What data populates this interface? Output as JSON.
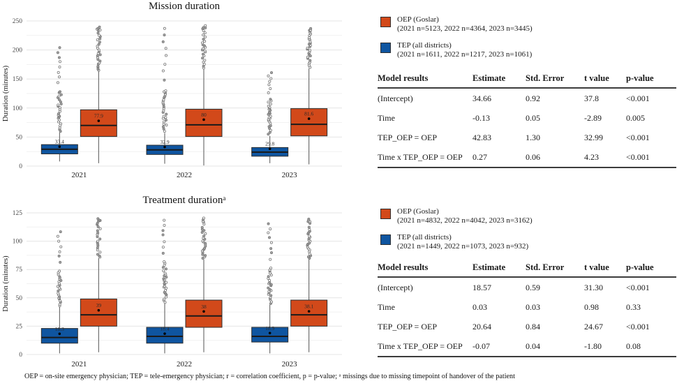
{
  "colors": {
    "oep": "#d2491a",
    "tep": "#0f55a0",
    "box_border": "#2f2f2f",
    "median_line": "#1a1a1a",
    "whisker": "#555555",
    "grid_major": "#e4e4e4",
    "grid_minor": "#f1f1f1",
    "axis_text": "#4d4d4d",
    "outlier_stroke": "#787878",
    "outlier_fill": "#9b9b9b"
  },
  "chart_data": [
    {
      "type": "boxplot",
      "title": "Mission duration",
      "ylabel": "Duration (minutes)",
      "ylim": [
        0,
        250
      ],
      "yticks": [
        0,
        50,
        100,
        150,
        200,
        250
      ],
      "categories": [
        "2021",
        "2022",
        "2023"
      ],
      "grid": true,
      "series": [
        {
          "name": "TEP (all districts)",
          "color_key": "tep",
          "position": "left",
          "boxes": [
            {
              "low": 8,
              "q1": 21,
              "median": 29,
              "q3": 37,
              "high": 58,
              "mean": 33.4,
              "mean_label": "33.4",
              "outliers": {
                "from": 60,
                "dense_to": 130,
                "to": 204,
                "sparse_count": 8
              }
            },
            {
              "low": 4,
              "q1": 20,
              "median": 28,
              "q3": 36,
              "high": 57,
              "mean": 32.9,
              "mean_label": "32.9",
              "outliers": {
                "from": 60,
                "dense_to": 130,
                "to": 237,
                "sparse_count": 8
              }
            },
            {
              "low": 5,
              "q1": 17,
              "median": 24,
              "q3": 32,
              "high": 52,
              "mean": 29.8,
              "mean_label": "29.8",
              "outliers": {
                "from": 55,
                "dense_to": 118,
                "to": 162,
                "sparse_count": 7
              }
            }
          ]
        },
        {
          "name": "OEP (Goslar)",
          "color_key": "oep",
          "position": "right",
          "boxes": [
            {
              "low": 5,
              "q1": 51,
              "median": 70,
              "q3": 97,
              "high": 163,
              "mean": 77.9,
              "mean_label": "77.9",
              "outliers": {
                "from": 165,
                "dense_to": 230,
                "to": 240,
                "sparse_count": 5
              }
            },
            {
              "low": 1,
              "q1": 51,
              "median": 71,
              "q3": 98,
              "high": 167,
              "mean": 80,
              "mean_label": "80",
              "outliers": {
                "from": 169,
                "dense_to": 231,
                "to": 241,
                "sparse_count": 5
              }
            },
            {
              "low": 3,
              "q1": 52,
              "median": 72,
              "q3": 99,
              "high": 168,
              "mean": 81.6,
              "mean_label": "81.6",
              "outliers": {
                "from": 170,
                "dense_to": 228,
                "to": 236,
                "sparse_count": 5
              }
            }
          ]
        }
      ],
      "legend": [
        {
          "color_key": "oep",
          "label": "OEP (Goslar)",
          "sub": "(2021 n=5123, 2022 n=4364, 2023 n=3445)"
        },
        {
          "color_key": "tep",
          "label": "TEP (all districts)",
          "sub": "(2021 n=1611, 2022 n=1217, 2023 n=1061)"
        }
      ]
    },
    {
      "type": "boxplot",
      "title": "Treatment durationᵃ",
      "ylabel": "Duration (minutes)",
      "ylim": [
        0,
        125
      ],
      "yticks": [
        0,
        25,
        50,
        75,
        100,
        125
      ],
      "categories": [
        "2021",
        "2022",
        "2023"
      ],
      "grid": true,
      "series": [
        {
          "name": "TEP (all districts)",
          "color_key": "tep",
          "position": "left",
          "boxes": [
            {
              "low": 1,
              "q1": 10,
              "median": 15,
              "q3": 23,
              "high": 42,
              "mean": 18.3,
              "mean_label": "18.3",
              "outliers": {
                "from": 43,
                "dense_to": 75,
                "to": 108,
                "sparse_count": 7
              }
            },
            {
              "low": 1,
              "q1": 10,
              "median": 16,
              "q3": 24,
              "high": 45,
              "mean": 18.4,
              "mean_label": "18.4",
              "outliers": {
                "from": 46,
                "dense_to": 82,
                "to": 119,
                "sparse_count": 7
              }
            },
            {
              "low": 1,
              "q1": 11,
              "median": 16,
              "q3": 24,
              "high": 44,
              "mean": 18.9,
              "mean_label": "18.9",
              "outliers": {
                "from": 45,
                "dense_to": 78,
                "to": 115,
                "sparse_count": 8
              }
            }
          ]
        },
        {
          "name": "OEP (Goslar)",
          "color_key": "oep",
          "position": "right",
          "boxes": [
            {
              "low": 2,
              "q1": 25,
              "median": 35,
              "q3": 49,
              "high": 85,
              "mean": 39,
              "mean_label": "39",
              "outliers": {
                "from": 86,
                "dense_to": 115,
                "to": 120,
                "sparse_count": 5
              }
            },
            {
              "low": 2,
              "q1": 24,
              "median": 34,
              "q3": 48,
              "high": 84,
              "mean": 38,
              "mean_label": "38",
              "outliers": {
                "from": 85,
                "dense_to": 114,
                "to": 120,
                "sparse_count": 5
              }
            },
            {
              "low": 2,
              "q1": 25,
              "median": 35,
              "q3": 48,
              "high": 84,
              "mean": 38.1,
              "mean_label": "38.1",
              "outliers": {
                "from": 85,
                "dense_to": 114,
                "to": 120,
                "sparse_count": 5
              }
            }
          ]
        }
      ],
      "legend": [
        {
          "color_key": "oep",
          "label": "OEP (Goslar)",
          "sub": "(2021 n=4832, 2022 n=4042, 2023 n=3162)"
        },
        {
          "color_key": "tep",
          "label": "TEP (all districts)",
          "sub": "(2021 n=1449, 2022 n=1073, 2023 n=932)"
        }
      ]
    }
  ],
  "tables": [
    {
      "header": [
        "Model results",
        "Estimate",
        "Std. Error",
        "t value",
        "p-value"
      ],
      "rows": [
        [
          "(Intercept)",
          "34.66",
          "0.92",
          "37.8",
          "<0.001"
        ],
        [
          "Time",
          "-0.13",
          "0.05",
          "-2.89",
          "0.005"
        ],
        [
          "TEP_OEP = OEP",
          "42.83",
          "1.30",
          "32.99",
          "<0.001"
        ],
        [
          "Time x TEP_OEP = OEP",
          "0.27",
          "0.06",
          "4.23",
          "<0.001"
        ]
      ]
    },
    {
      "header": [
        "Model results",
        "Estimate",
        "Std. Error",
        "t value",
        "p-value"
      ],
      "rows": [
        [
          "(Intercept)",
          "18.57",
          "0.59",
          "31.30",
          "<0.001"
        ],
        [
          "Time",
          "0.03",
          "0.03",
          "0.98",
          "0.33"
        ],
        [
          "TEP_OEP = OEP",
          "20.64",
          "0.84",
          "24.67",
          "<0.001"
        ],
        [
          "Time x TEP_OEP = OEP",
          "-0.07",
          "0.04",
          "-1.80",
          "0.08"
        ]
      ]
    }
  ],
  "footnote": "OEP = on-site emergency physician; TEP = tele-emergency physician; r = correlation coefficient, p = p-value; ᵃ missings due to missing timepoint of handover of the patient"
}
